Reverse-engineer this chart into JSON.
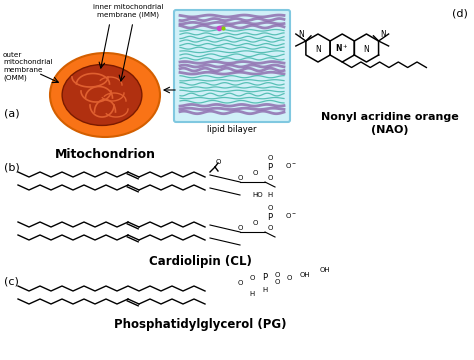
{
  "bg_color": "#ffffff",
  "labels": {
    "a": "(a)",
    "b": "(b)",
    "c": "(c)",
    "d": "(d)",
    "mitochondrion": "Mitochondrion",
    "imm": "inner mitochondrial\nmembrane (IMM)",
    "omm": "outer\nmitochondrial\nmembrane\n(OMM)",
    "lipid_bilayer": "lipid bilayer",
    "nao_name": "Nonyl acridine orange\n(NAO)",
    "cl_name": "Cardiolipin (CL)",
    "pg_name": "Phosphatidylglycerol (PG)"
  },
  "mito_outer_color": "#f97316",
  "mito_outer_edge": "#d45f00",
  "mito_inner_color": "#b03010",
  "mito_inner_edge": "#7a1a00",
  "crista_color": "#e06030",
  "lipid_box_color": "#d0f0f8",
  "lipid_box_edge": "#80c8e0",
  "lipid_teal": "#30b0a0",
  "lipid_purple": "#9070b0"
}
